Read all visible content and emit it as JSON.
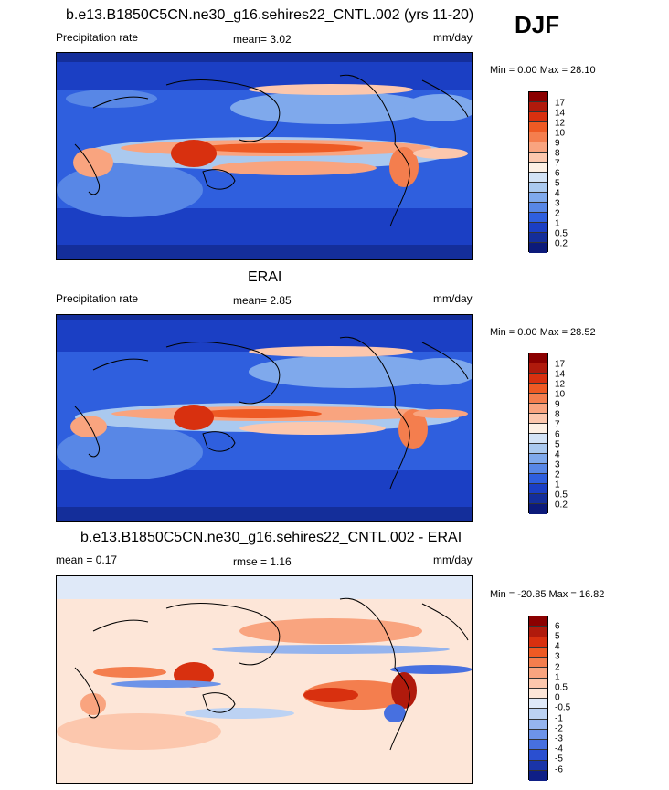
{
  "season": "DJF",
  "panels": [
    {
      "title": "b.e13.B1850C5CN.ne30_g16.sehires22_CNTL.002 (yrs 11-20)",
      "left_label": "Precipitation rate",
      "mid_label": "mean=   3.02",
      "units": "mm/day",
      "minmax": "Min =   0.00 Max =  28.10",
      "colorbar_labels": [
        "17",
        "14",
        "12",
        "10",
        "9",
        "8",
        "7",
        "6",
        "5",
        "4",
        "3",
        "2",
        "1",
        "0.5",
        "0.2"
      ]
    },
    {
      "title": "ERAI",
      "left_label": "Precipitation rate",
      "mid_label": "mean=   2.85",
      "units": "mm/day",
      "minmax": "Min =   0.00 Max =  28.52",
      "colorbar_labels": [
        "17",
        "14",
        "12",
        "10",
        "9",
        "8",
        "7",
        "6",
        "5",
        "4",
        "3",
        "2",
        "1",
        "0.5",
        "0.2"
      ]
    },
    {
      "title": "b.e13.B1850C5CN.ne30_g16.sehires22_CNTL.002 - ERAI",
      "left_label": "mean =   0.17",
      "mid_label": "rmse =   1.16",
      "units": "mm/day",
      "minmax": "Min = -20.85 Max =  16.82",
      "colorbar_labels": [
        "6",
        "5",
        "4",
        "3",
        "2",
        "1",
        "0.5",
        "0",
        "-0.5",
        "-1",
        "-2",
        "-3",
        "-4",
        "-5",
        "-6"
      ]
    }
  ],
  "colors": {
    "precip_scale": [
      "#8b0000",
      "#b01a0c",
      "#d8300f",
      "#ee5a24",
      "#f47e4e",
      "#f9a47f",
      "#fcc7ad",
      "#fdf0e4",
      "#d3e3f6",
      "#aac9ef",
      "#7fa9ec",
      "#5887e6",
      "#2f5fde",
      "#1b3fc4",
      "#142e9a",
      "#0c1a7a"
    ],
    "diff_scale": [
      "#8b0000",
      "#b01a0c",
      "#d8300f",
      "#ee5a24",
      "#f47e4e",
      "#f9a47f",
      "#fcc7ad",
      "#fde6d8",
      "#dfe9f8",
      "#bcd2f3",
      "#95b4ee",
      "#6d93e8",
      "#4770e0",
      "#2a4fd0",
      "#1a34a8",
      "#0f1f86"
    ]
  }
}
